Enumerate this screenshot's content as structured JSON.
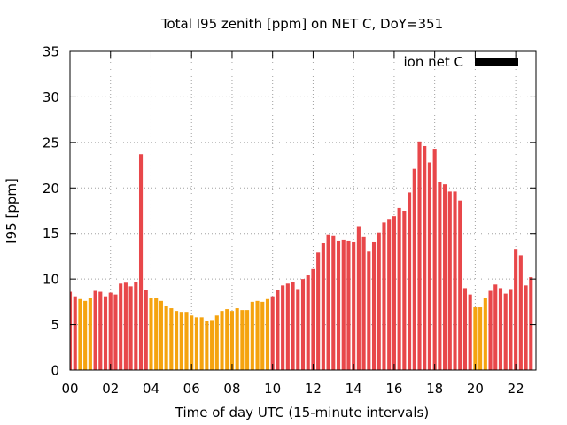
{
  "chart_data": {
    "type": "bar",
    "title": "Total I95 zenith [ppm] on NET C, DoY=351",
    "xlabel": "Time of day UTC (15-minute intervals)",
    "ylabel": "I95 [ppm]",
    "ylim": [
      0,
      35
    ],
    "yticks": [
      "0",
      "5",
      "10",
      "15",
      "20",
      "25",
      "30",
      "35"
    ],
    "xlim": [
      0,
      23
    ],
    "xticks": [
      "00",
      "02",
      "04",
      "06",
      "08",
      "10",
      "12",
      "14",
      "16",
      "18",
      "20",
      "22"
    ],
    "grid": true,
    "legend": {
      "position": "top-right",
      "label": "ion net C",
      "color": "#000000"
    },
    "colors": {
      "high": "#e8474a",
      "low": "#f5a30f"
    },
    "series": [
      {
        "name": "ion net C",
        "x": [
          0.0,
          0.25,
          0.5,
          0.75,
          1.0,
          1.25,
          1.5,
          1.75,
          2.0,
          2.25,
          2.5,
          2.75,
          3.0,
          3.25,
          3.5,
          3.75,
          4.0,
          4.25,
          4.5,
          4.75,
          5.0,
          5.25,
          5.5,
          5.75,
          6.0,
          6.25,
          6.5,
          6.75,
          7.0,
          7.25,
          7.5,
          7.75,
          8.0,
          8.25,
          8.5,
          8.75,
          9.0,
          9.25,
          9.5,
          9.75,
          10.0,
          10.25,
          10.5,
          10.75,
          11.0,
          11.25,
          11.5,
          11.75,
          12.0,
          12.25,
          12.5,
          12.75,
          13.0,
          13.25,
          13.5,
          13.75,
          14.0,
          14.25,
          14.5,
          14.75,
          15.0,
          15.25,
          15.5,
          15.75,
          16.0,
          16.25,
          16.5,
          16.75,
          17.0,
          17.25,
          17.5,
          17.75,
          18.0,
          18.25,
          18.5,
          18.75,
          19.0,
          19.25,
          19.5,
          19.75,
          20.0,
          20.25,
          20.5,
          20.75,
          21.0,
          21.25,
          21.5,
          21.75,
          22.0,
          22.25,
          22.5,
          22.75
        ],
        "values": [
          8.6,
          8.1,
          7.8,
          7.6,
          7.9,
          8.7,
          8.6,
          8.1,
          8.5,
          8.3,
          9.5,
          9.6,
          9.2,
          9.7,
          23.7,
          8.8,
          7.9,
          7.9,
          7.6,
          7.0,
          6.8,
          6.5,
          6.4,
          6.4,
          6.0,
          5.8,
          5.8,
          5.4,
          5.5,
          6.0,
          6.5,
          6.7,
          6.5,
          6.8,
          6.6,
          6.6,
          7.5,
          7.6,
          7.5,
          7.8,
          8.1,
          8.8,
          9.3,
          9.5,
          9.7,
          8.9,
          10.0,
          10.4,
          11.1,
          12.9,
          14.0,
          14.9,
          14.8,
          14.2,
          14.3,
          14.2,
          14.1,
          15.8,
          14.6,
          13.0,
          14.1,
          15.1,
          16.2,
          16.6,
          16.9,
          17.8,
          17.5,
          19.5,
          22.1,
          25.1,
          24.6,
          22.8,
          24.3,
          20.7,
          20.4,
          19.6,
          19.6,
          18.6,
          9.0,
          8.3,
          6.9,
          6.9,
          7.9,
          8.7,
          9.4,
          9.0,
          8.4,
          8.9,
          13.3,
          12.6,
          9.3,
          10.2
        ],
        "level": [
          "high",
          "high",
          "low",
          "low",
          "low",
          "high",
          "high",
          "high",
          "high",
          "high",
          "high",
          "high",
          "high",
          "high",
          "high",
          "high",
          "low",
          "low",
          "low",
          "low",
          "low",
          "low",
          "low",
          "low",
          "low",
          "low",
          "low",
          "low",
          "low",
          "low",
          "low",
          "low",
          "low",
          "low",
          "low",
          "low",
          "low",
          "low",
          "low",
          "low",
          "high",
          "high",
          "high",
          "high",
          "high",
          "high",
          "high",
          "high",
          "high",
          "high",
          "high",
          "high",
          "high",
          "high",
          "high",
          "high",
          "high",
          "high",
          "high",
          "high",
          "high",
          "high",
          "high",
          "high",
          "high",
          "high",
          "high",
          "high",
          "high",
          "high",
          "high",
          "high",
          "high",
          "high",
          "high",
          "high",
          "high",
          "high",
          "high",
          "high",
          "low",
          "low",
          "low",
          "high",
          "high",
          "high",
          "high",
          "high",
          "high",
          "high",
          "high",
          "high"
        ]
      }
    ]
  }
}
